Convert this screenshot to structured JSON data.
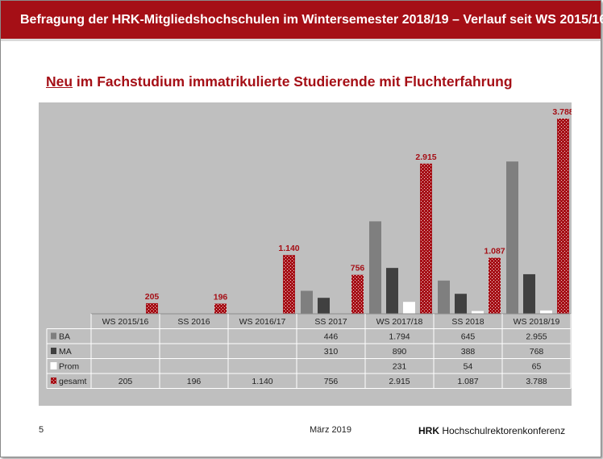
{
  "header": {
    "title": "Befragung der HRK-Mitgliedshochschulen im Wintersemester 2018/19 – Verlauf seit WS 2015/16"
  },
  "subtitle": {
    "underlined": "Neu",
    "rest": " im Fachstudium immatrikulierte Studierende mit Fluchterfahrung"
  },
  "footer": {
    "page": "5",
    "date": "März 2019",
    "brand_short": "HRK",
    "brand_long": " Hochschulrektorenkonferenz"
  },
  "colors": {
    "accent": "#a50f16",
    "ba": "#7f7f7f",
    "ma": "#404040",
    "prom": "#ffffff",
    "gesamt": "#a50f16",
    "plot_bg": "#bfbfbf"
  },
  "chart_data": {
    "type": "bar",
    "title": "Neu im Fachstudium immatrikulierte Studierende mit Fluchterfahrung",
    "categories": [
      "WS 2015/16",
      "SS 2016",
      "WS 2016/17",
      "SS 2017",
      "WS 2017/18",
      "SS 2018",
      "WS 2018/19"
    ],
    "series": [
      {
        "name": "BA",
        "values": [
          null,
          null,
          null,
          446,
          1794,
          645,
          2955
        ],
        "labels": [
          "",
          "",
          "",
          "446",
          "1.794",
          "645",
          "2.955"
        ]
      },
      {
        "name": "MA",
        "values": [
          null,
          null,
          null,
          310,
          890,
          388,
          768
        ],
        "labels": [
          "",
          "",
          "",
          "310",
          "890",
          "388",
          "768"
        ]
      },
      {
        "name": "Prom",
        "values": [
          null,
          null,
          null,
          null,
          231,
          54,
          65
        ],
        "labels": [
          "",
          "",
          "",
          "",
          "231",
          "54",
          "65"
        ]
      },
      {
        "name": "gesamt",
        "values": [
          205,
          196,
          1140,
          756,
          2915,
          1087,
          3788
        ],
        "labels": [
          "205",
          "196",
          "1.140",
          "756",
          "2.915",
          "1.087",
          "3.788"
        ]
      }
    ],
    "ylim": [
      0,
      3788
    ],
    "grid": false,
    "legend": "data-table",
    "xlabel": "",
    "ylabel": ""
  }
}
